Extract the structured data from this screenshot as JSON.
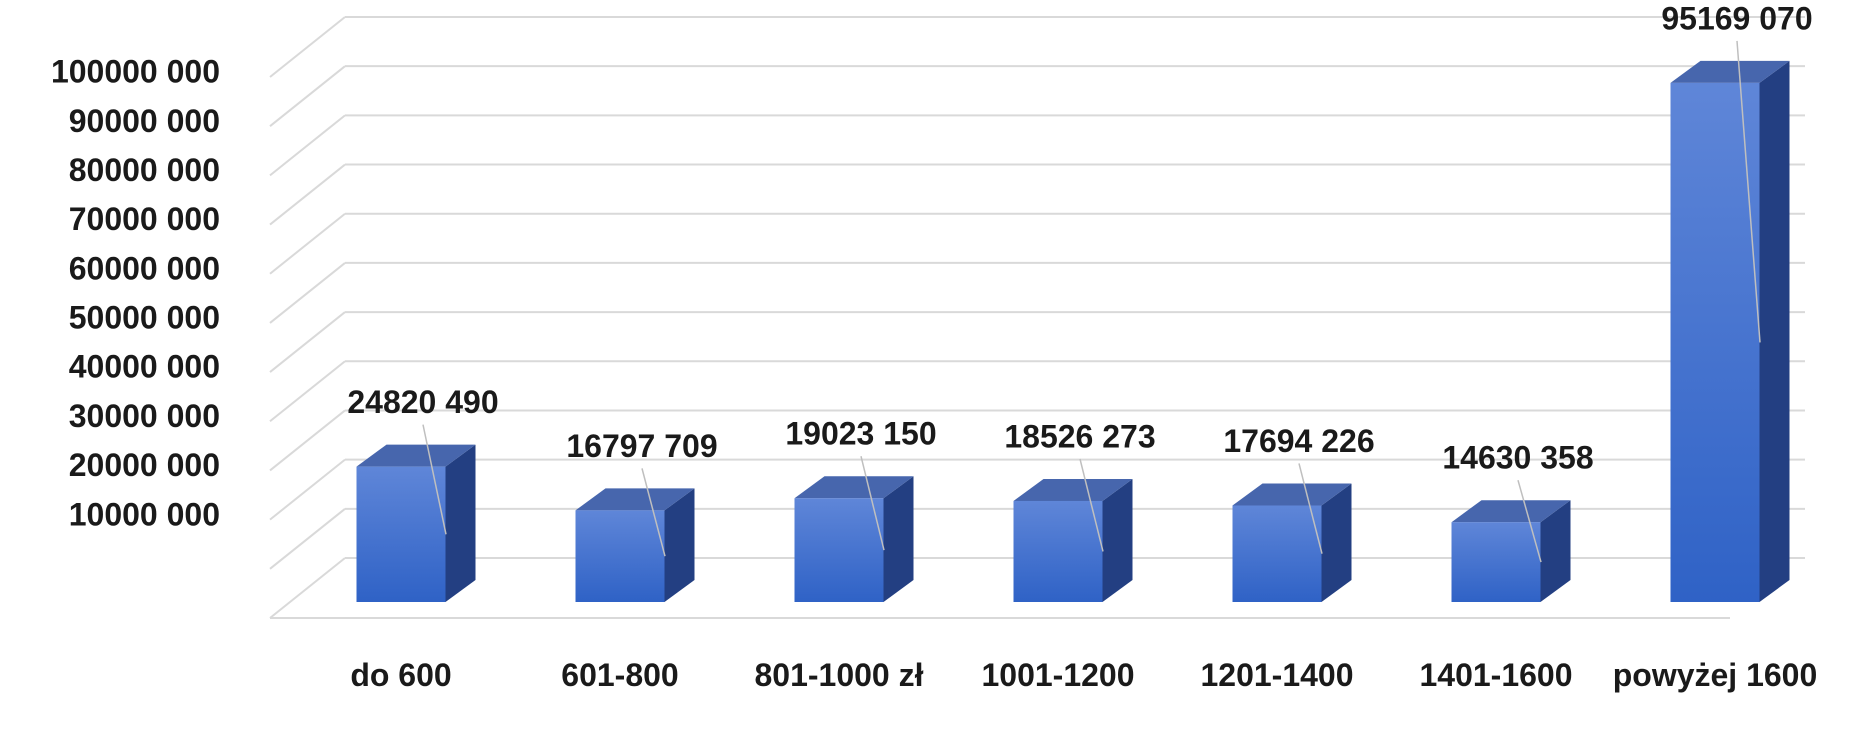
{
  "chart_data": {
    "type": "bar3d",
    "categories": [
      "do 600",
      "601-800",
      "801-1000 zł",
      "1001-1200",
      "1201-1400",
      "1401-1600",
      "powyżej 1600"
    ],
    "values": [
      24820490,
      16797709,
      19023150,
      18526273,
      17694226,
      14630358,
      95169070
    ],
    "value_labels": [
      "24820 490",
      "16797 709",
      "19023 150",
      "18526 273",
      "17694 226",
      "14630 358",
      "95169 070"
    ],
    "color": "#3f6fd0",
    "ylim": [
      0,
      110000000
    ],
    "yticks": [
      {
        "value": 10000000,
        "label": "10000 000"
      },
      {
        "value": 20000000,
        "label": "20000 000"
      },
      {
        "value": 30000000,
        "label": "30000 000"
      },
      {
        "value": 40000000,
        "label": "40000 000"
      },
      {
        "value": 50000000,
        "label": "50000 000"
      },
      {
        "value": 60000000,
        "label": "60000 000"
      },
      {
        "value": 70000000,
        "label": "70000 000"
      },
      {
        "value": 80000000,
        "label": "80000 000"
      },
      {
        "value": 90000000,
        "label": "90000 000"
      },
      {
        "value": 100000000,
        "label": "100000 000"
      }
    ],
    "grid": true
  }
}
